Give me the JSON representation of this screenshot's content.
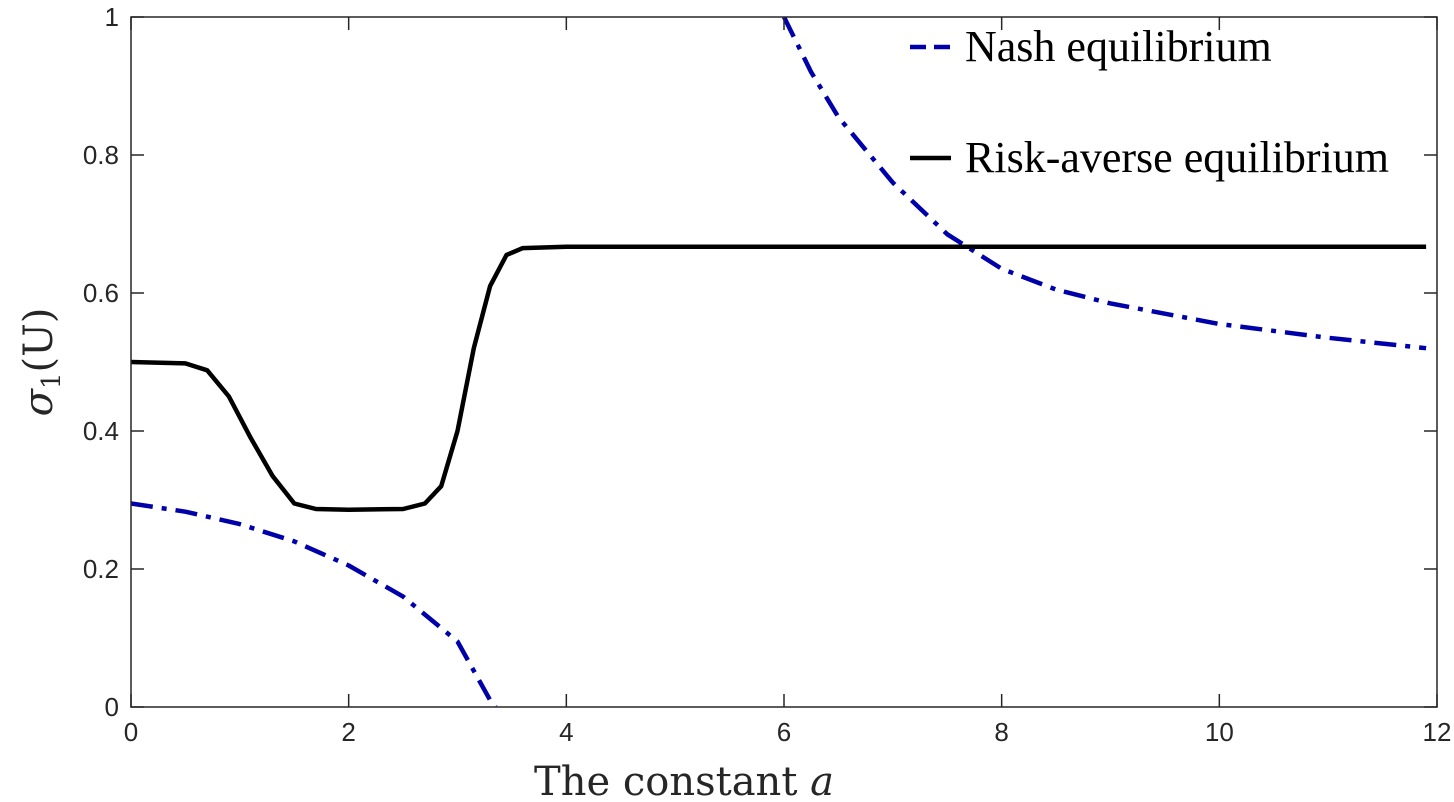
{
  "chart_data": {
    "type": "line",
    "xlabel": {
      "prefix": "The constant ",
      "var": "a"
    },
    "ylabel": {
      "sigma": "σ",
      "sub": "1",
      "arg": "(U)"
    },
    "xlim": [
      0,
      12
    ],
    "ylim": [
      0,
      1
    ],
    "xticks": [
      0,
      2,
      4,
      6,
      8,
      10,
      12
    ],
    "yticks": [
      0,
      0.2,
      0.4,
      0.6,
      0.8,
      1
    ],
    "xtick_labels": [
      "0",
      "2",
      "4",
      "6",
      "8",
      "10",
      "12"
    ],
    "ytick_labels": [
      "0",
      "0.2",
      "0.4",
      "0.6",
      "0.8",
      "1"
    ],
    "grid": false,
    "legend_position": "top-right",
    "colors": {
      "nash": "#0000aa",
      "risk": "#000000",
      "axes": "#262626"
    },
    "series": [
      {
        "name": "Nash equilibrium",
        "style": "dash-dot",
        "segments": [
          [
            [
              0,
              0.295
            ],
            [
              0.5,
              0.283
            ],
            [
              1.0,
              0.265
            ],
            [
              1.5,
              0.24
            ],
            [
              2.0,
              0.205
            ],
            [
              2.5,
              0.16
            ],
            [
              3.0,
              0.095
            ],
            [
              3.3,
              0.01
            ],
            [
              3.35,
              0.0
            ]
          ],
          [
            [
              6.0,
              1.0
            ],
            [
              6.25,
              0.92
            ],
            [
              6.5,
              0.855
            ],
            [
              7.0,
              0.76
            ],
            [
              7.5,
              0.685
            ],
            [
              8.0,
              0.635
            ],
            [
              8.5,
              0.605
            ],
            [
              9.0,
              0.585
            ],
            [
              10.0,
              0.555
            ],
            [
              11.0,
              0.535
            ],
            [
              11.9,
              0.52
            ]
          ]
        ]
      },
      {
        "name": "Risk-averse equilibrium",
        "style": "solid",
        "segments": [
          [
            [
              0,
              0.5
            ],
            [
              0.5,
              0.498
            ],
            [
              0.7,
              0.488
            ],
            [
              0.9,
              0.45
            ],
            [
              1.1,
              0.39
            ],
            [
              1.3,
              0.335
            ],
            [
              1.5,
              0.295
            ],
            [
              1.7,
              0.287
            ],
            [
              2.0,
              0.286
            ],
            [
              2.5,
              0.287
            ],
            [
              2.7,
              0.295
            ],
            [
              2.85,
              0.32
            ],
            [
              3.0,
              0.4
            ],
            [
              3.15,
              0.52
            ],
            [
              3.3,
              0.61
            ],
            [
              3.45,
              0.655
            ],
            [
              3.6,
              0.665
            ],
            [
              4.0,
              0.667
            ],
            [
              6.0,
              0.667
            ],
            [
              11.9,
              0.667
            ]
          ]
        ]
      }
    ]
  }
}
